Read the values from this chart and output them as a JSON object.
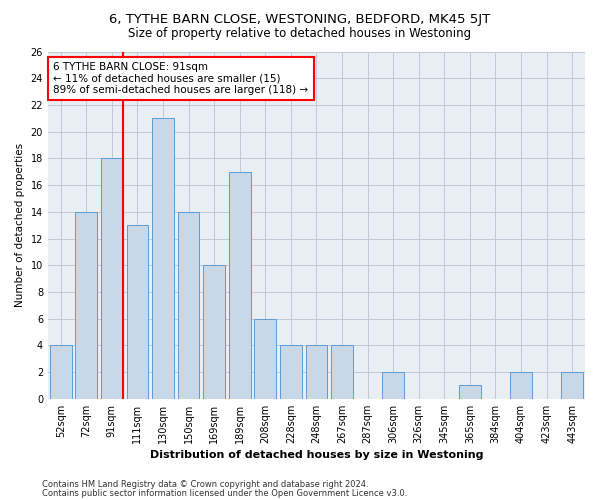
{
  "title": "6, TYTHE BARN CLOSE, WESTONING, BEDFORD, MK45 5JT",
  "subtitle": "Size of property relative to detached houses in Westoning",
  "xlabel": "Distribution of detached houses by size in Westoning",
  "ylabel": "Number of detached properties",
  "categories": [
    "52sqm",
    "72sqm",
    "91sqm",
    "111sqm",
    "130sqm",
    "150sqm",
    "169sqm",
    "189sqm",
    "208sqm",
    "228sqm",
    "248sqm",
    "267sqm",
    "287sqm",
    "306sqm",
    "326sqm",
    "345sqm",
    "365sqm",
    "384sqm",
    "404sqm",
    "423sqm",
    "443sqm"
  ],
  "values": [
    4,
    14,
    18,
    13,
    21,
    14,
    10,
    17,
    6,
    4,
    4,
    4,
    0,
    2,
    0,
    0,
    1,
    0,
    2,
    0,
    2
  ],
  "bar_color": "#c8d8e8",
  "bar_edge_color": "#5b9bd5",
  "red_line_bar_index": 2,
  "annotation_line1": "6 TYTHE BARN CLOSE: 91sqm",
  "annotation_line2": "← 11% of detached houses are smaller (15)",
  "annotation_line3": "89% of semi-detached houses are larger (118) →",
  "annotation_box_color": "white",
  "annotation_box_edge": "red",
  "ylim": [
    0,
    26
  ],
  "yticks": [
    0,
    2,
    4,
    6,
    8,
    10,
    12,
    14,
    16,
    18,
    20,
    22,
    24,
    26
  ],
  "grid_color": "#c0c8d8",
  "background_color": "#e8eef4",
  "footer1": "Contains HM Land Registry data © Crown copyright and database right 2024.",
  "footer2": "Contains public sector information licensed under the Open Government Licence v3.0.",
  "title_fontsize": 9.5,
  "subtitle_fontsize": 8.5,
  "xlabel_fontsize": 8,
  "ylabel_fontsize": 7.5,
  "tick_fontsize": 7,
  "footer_fontsize": 6,
  "annotation_fontsize": 7.5
}
